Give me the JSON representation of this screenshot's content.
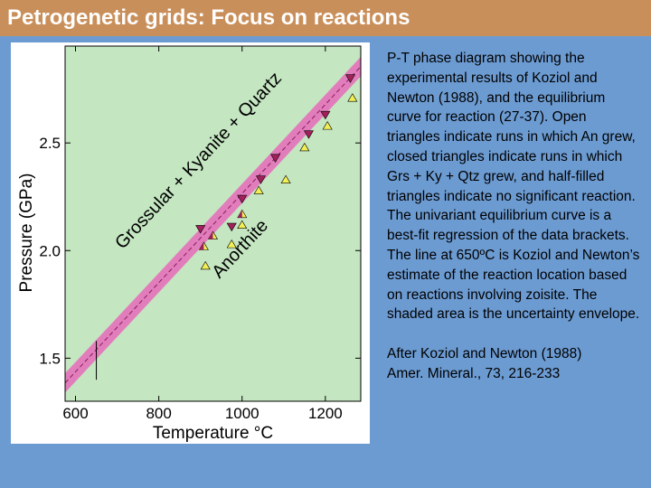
{
  "slide": {
    "title": "Petrogenetic grids: Focus on reactions",
    "caption": "P-T phase diagram showing the experimental results of Koziol and Newton (1988), and the equilibrium curve for reaction (27-37). Open triangles indicate runs in which An grew, closed triangles indicate runs in which Grs + Ky + Qtz grew, and half-filled triangles indicate no significant reaction. The univariant equilibrium curve is a best-fit regression of the data brackets. The line at 650ºC is Koziol and Newton’s estimate of the reaction location based on reactions involving zoisite. The shaded area is the uncertainty envelope.",
    "citation_line1": "After Koziol and Newton (1988)",
    "citation_line2": "Amer. Mineral., 73, 216-233"
  },
  "colors": {
    "background": "#6c9bd2",
    "title_bar": "#c98f5a",
    "plot_area": "#c4e6c1",
    "envelope": "#e27dbc",
    "equilibrium_line": "#8a1c5e",
    "closed_triangle": "#a3215b",
    "open_triangle": "#f2ee55"
  },
  "chart_data": {
    "type": "scatter",
    "xlabel": "Temperature  °C",
    "ylabel": "Pressure (GPa)",
    "xlim": [
      575,
      1285
    ],
    "ylim": [
      1.3,
      2.95
    ],
    "xticks": [
      600,
      800,
      1000,
      1200
    ],
    "yticks": [
      1.5,
      2.0,
      2.5
    ],
    "grid": false,
    "field_labels": {
      "high_pressure": "Grossular + Kyanite + Quartz",
      "low_pressure": "Anorthite"
    },
    "equilibrium_curve": {
      "x": [
        575,
        1285
      ],
      "y": [
        1.385,
        2.855
      ],
      "envelope_halfwidth_gpa": 0.045
    },
    "zoisite_line": {
      "x": 650,
      "y": [
        1.4,
        1.58
      ]
    },
    "series": [
      {
        "name": "Grs + Ky + Qtz grew",
        "marker": "closed",
        "x": [
          900,
          975,
          1000,
          1045,
          1080,
          1160,
          1200,
          1260
        ],
        "y": [
          2.1,
          2.11,
          2.24,
          2.33,
          2.43,
          2.54,
          2.63,
          2.8
        ]
      },
      {
        "name": "An grew",
        "marker": "open",
        "x": [
          912,
          975,
          1000,
          1040,
          1105,
          1150,
          1205,
          1265
        ],
        "y": [
          1.93,
          2.03,
          2.12,
          2.28,
          2.33,
          2.48,
          2.58,
          2.71
        ]
      },
      {
        "name": "no significant reaction",
        "marker": "half",
        "x": [
          908,
          930,
          1000
        ],
        "y": [
          2.02,
          2.07,
          2.17
        ]
      }
    ]
  }
}
